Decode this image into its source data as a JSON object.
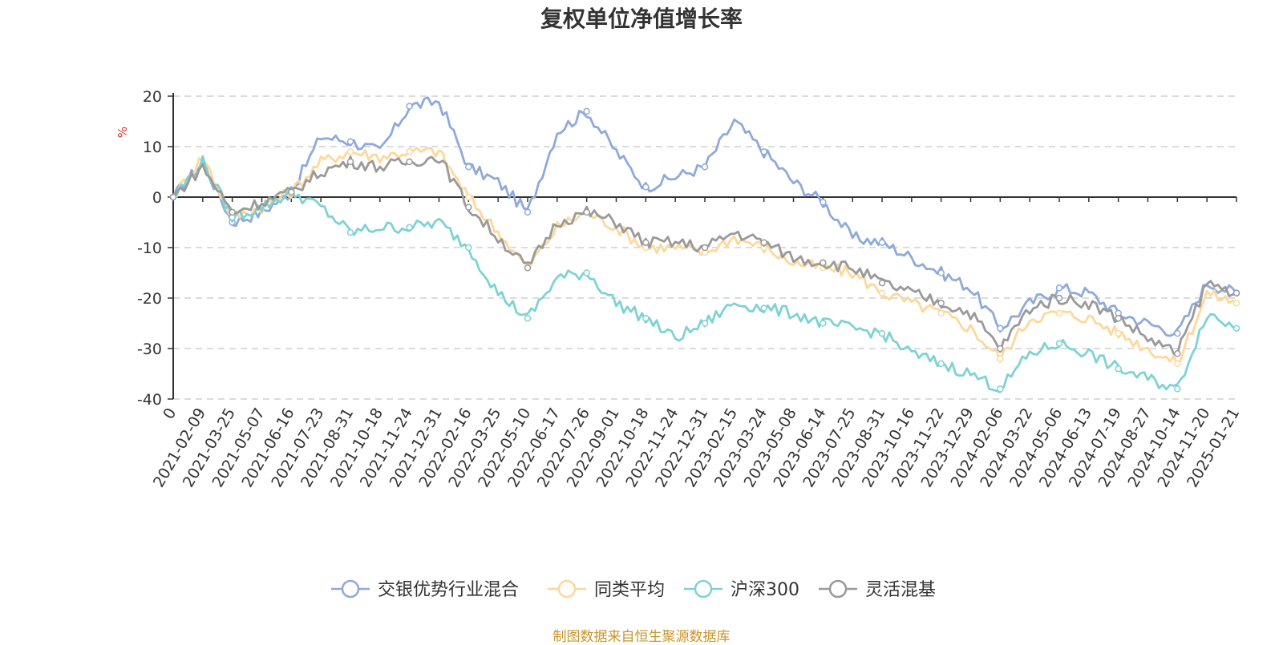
{
  "chart_data": {
    "type": "line",
    "title": "复权单位净值增长率",
    "ylabel": "%",
    "ylim": [
      -40,
      20
    ],
    "yticks": [
      20,
      10,
      0,
      -10,
      -20,
      -30,
      -40
    ],
    "grid": true,
    "legend_position": "bottom",
    "source_note": "制图数据来自恒生聚源数据库",
    "x": [
      "0",
      "2021-02-09",
      "2021-03-25",
      "2021-05-07",
      "2021-06-16",
      "2021-07-23",
      "2021-08-31",
      "2021-10-18",
      "2021-11-24",
      "2021-12-31",
      "2022-02-16",
      "2022-03-25",
      "2022-05-10",
      "2022-06-17",
      "2022-07-26",
      "2022-09-01",
      "2022-10-18",
      "2022-11-24",
      "2022-12-31",
      "2023-02-15",
      "2023-03-24",
      "2023-05-08",
      "2023-06-14",
      "2023-07-25",
      "2023-08-31",
      "2023-10-16",
      "2023-11-22",
      "2023-12-29",
      "2024-02-06",
      "2024-03-22",
      "2024-05-06",
      "2024-06-13",
      "2024-07-19",
      "2024-08-27",
      "2024-10-14",
      "2024-11-20",
      "2025-01-21"
    ],
    "series": [
      {
        "name": "交银优势行业混合",
        "color": "#8eaadb",
        "values": [
          0,
          7,
          -5,
          -3,
          1,
          12,
          11,
          9,
          18,
          19,
          6,
          3,
          -3,
          13,
          17,
          9,
          2,
          4,
          6,
          15,
          9,
          3,
          -1,
          -8,
          -9,
          -12,
          -15,
          -18,
          -26,
          -21,
          -18,
          -19,
          -23,
          -25,
          -27,
          -17,
          -19
        ]
      },
      {
        "name": "同类平均",
        "color": "#fdd89a",
        "values": [
          0,
          8,
          -4,
          -2,
          1,
          7,
          9,
          8,
          9,
          9,
          0,
          -7,
          -14,
          -6,
          -3,
          -6,
          -10,
          -10,
          -11,
          -8,
          -10,
          -13,
          -14,
          -15,
          -19,
          -21,
          -23,
          -26,
          -32,
          -24,
          -23,
          -24,
          -27,
          -30,
          -33,
          -19,
          -21
        ]
      },
      {
        "name": "沪深300",
        "color": "#7fd2d4",
        "values": [
          0,
          7,
          -4,
          -2,
          1,
          -2,
          -7,
          -6,
          -6,
          -5,
          -10,
          -19,
          -24,
          -16,
          -15,
          -21,
          -24,
          -28,
          -25,
          -21,
          -22,
          -23,
          -25,
          -26,
          -27,
          -31,
          -33,
          -35,
          -38,
          -31,
          -29,
          -31,
          -34,
          -36,
          -38,
          -23,
          -26
        ]
      },
      {
        "name": "灵活混基",
        "color": "#9a9a9a",
        "values": [
          0,
          6,
          -3,
          -1,
          1,
          5,
          7,
          6,
          7,
          8,
          -2,
          -8,
          -14,
          -5,
          -3,
          -5,
          -9,
          -9,
          -10,
          -7,
          -9,
          -12,
          -13,
          -14,
          -17,
          -19,
          -21,
          -23,
          -30,
          -22,
          -20,
          -21,
          -24,
          -28,
          -31,
          -17,
          -19
        ]
      }
    ]
  }
}
